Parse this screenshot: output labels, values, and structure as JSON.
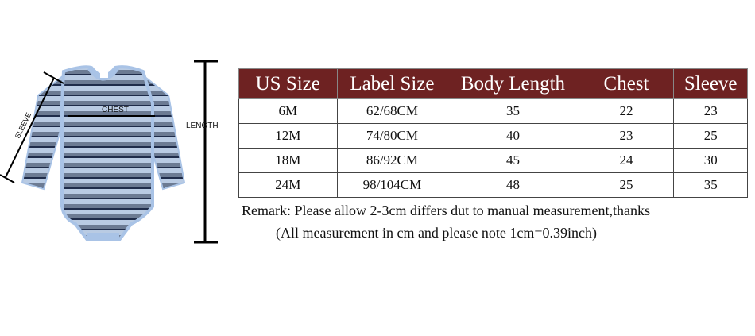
{
  "diagram": {
    "labels": {
      "chest": "CHEST",
      "length": "LENGTH",
      "sleeve": "SLEEVE"
    },
    "colors": {
      "stripe_light": "#b9cbe3",
      "stripe_mid": "#6c7b93",
      "stripe_dark": "#1f2c4a",
      "trim": "#a9c3e6"
    }
  },
  "table": {
    "header_color": "#6e2222",
    "columns": [
      "US Size",
      "Label Size",
      "Body Length",
      "Chest",
      "Sleeve"
    ],
    "rows": [
      [
        "6M",
        "62/68CM",
        "35",
        "22",
        "23"
      ],
      [
        "12M",
        "74/80CM",
        "40",
        "23",
        "25"
      ],
      [
        "18M",
        "86/92CM",
        "45",
        "24",
        "30"
      ],
      [
        "24M",
        "98/104CM",
        "48",
        "25",
        "35"
      ]
    ]
  },
  "remarks": [
    "Remark: Please allow 2-3cm differs dut to manual measurement,thanks",
    "(All measurement in cm and please note 1cm=0.39inch)"
  ]
}
